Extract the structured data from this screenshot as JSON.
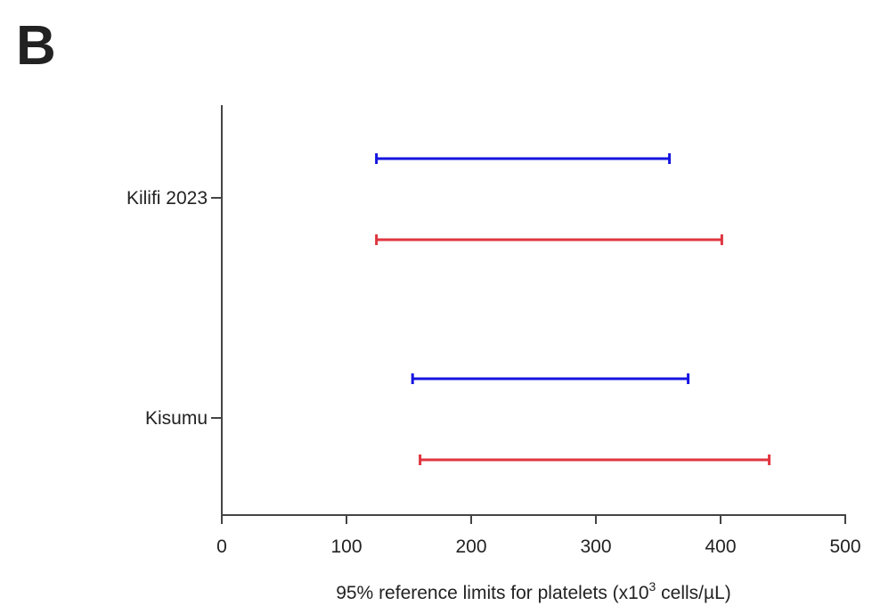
{
  "panel_label": "B",
  "chart_data": {
    "type": "range",
    "xlabel": [
      "95% reference limits for platelets  (x10",
      "3",
      " cells/µL)"
    ],
    "categories": [
      "Kilifi 2023",
      "Kisumu"
    ],
    "series": [
      {
        "color": "#1515e0",
        "low": [
          124,
          153
        ],
        "high": [
          359,
          374
        ]
      },
      {
        "color": "#e0353f",
        "low": [
          124,
          159
        ],
        "high": [
          401,
          439
        ]
      }
    ],
    "xlim": [
      0,
      500
    ],
    "xticks": [
      0,
      100,
      200,
      300,
      400,
      500
    ]
  }
}
